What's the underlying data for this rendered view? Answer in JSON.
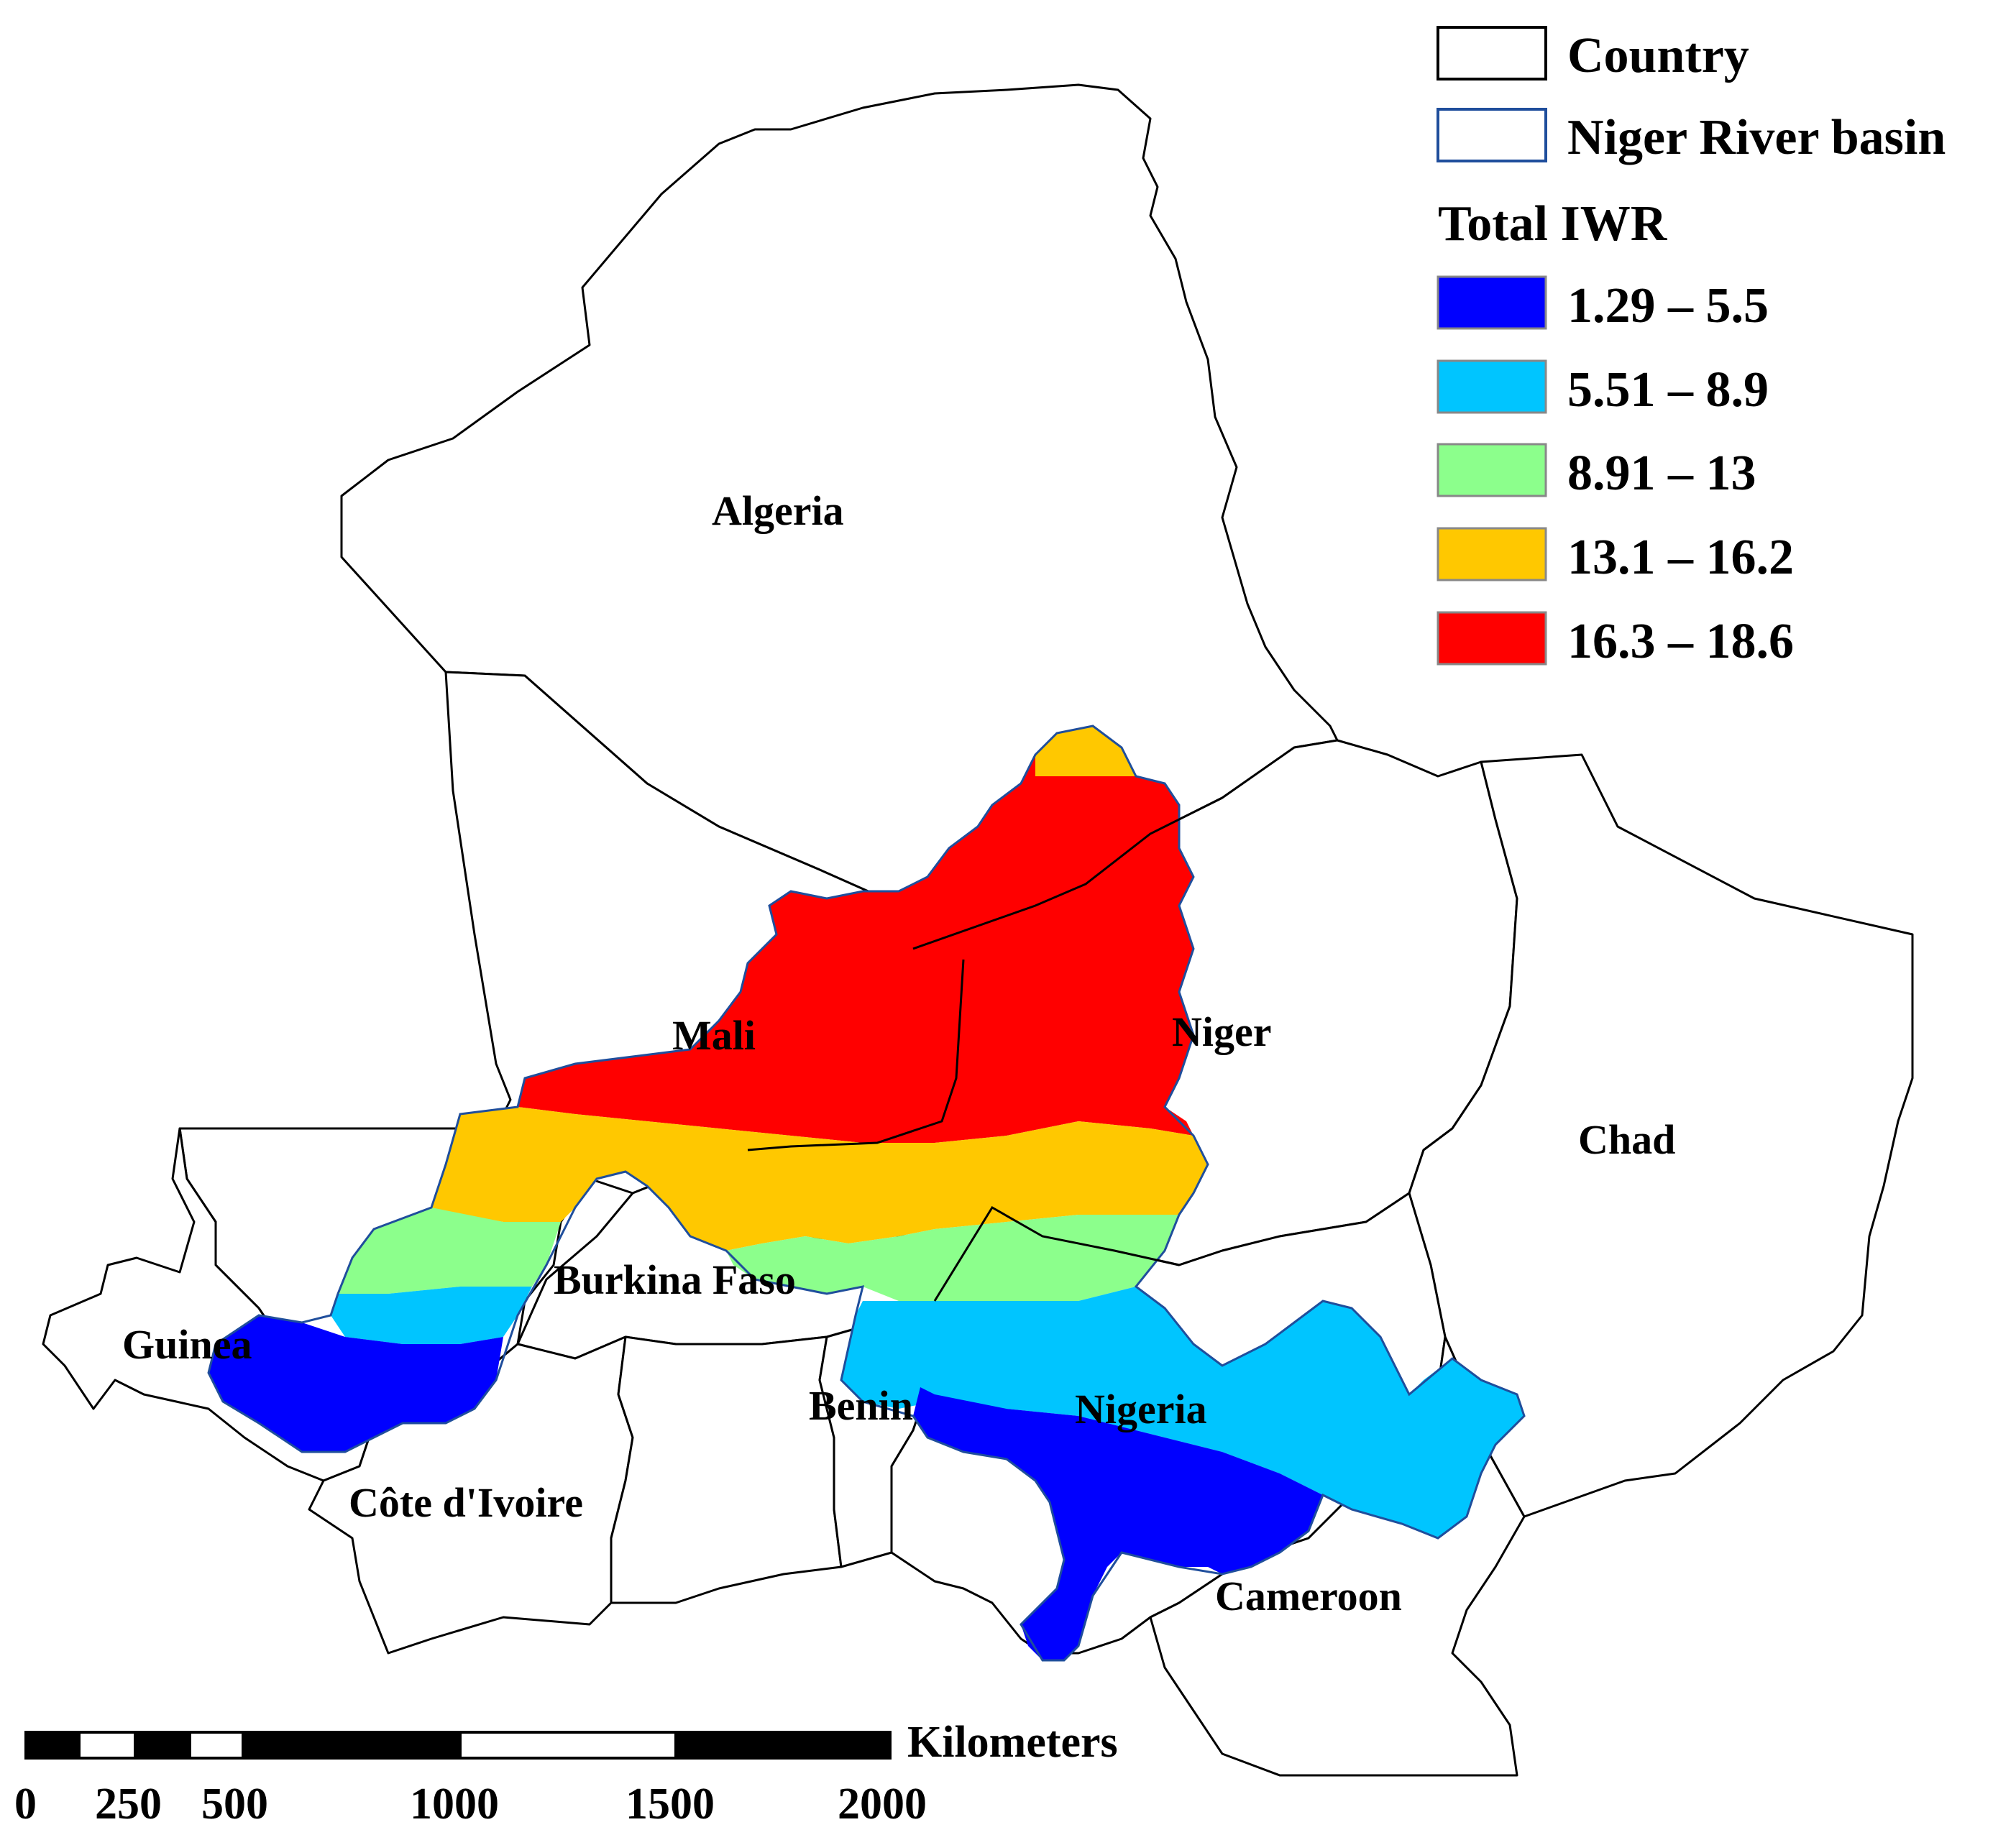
{
  "legend": {
    "country_label": "Country",
    "basin_label": "Niger River basin",
    "heading": "Total IWR",
    "classes": [
      {
        "range": "1.29 – 5.5",
        "color": "#0000ff"
      },
      {
        "range": "5.51 – 8.9",
        "color": "#00c5ff"
      },
      {
        "range": "8.91 – 13",
        "color": "#8cff8c"
      },
      {
        "range": "13.1 – 16.2",
        "color": "#ffc800"
      },
      {
        "range": "16.3 – 18.6",
        "color": "#ff0000"
      }
    ],
    "country_outline_color": "#000000",
    "basin_outline_color": "#1f4e9c"
  },
  "countries": {
    "algeria": "Algeria",
    "mali": "Mali",
    "niger": "Niger",
    "chad": "Chad",
    "burkina_faso": "Burkina Faso",
    "guinea": "Guinea",
    "benin": "Benin",
    "nigeria": "Nigeria",
    "cote_divoire": "Côte d'Ivoire",
    "cameroon": "Cameroon"
  },
  "scale_bar": {
    "unit": "Kilometers",
    "ticks": [
      "0",
      "250",
      "500",
      "1000",
      "1500",
      "2000"
    ]
  }
}
